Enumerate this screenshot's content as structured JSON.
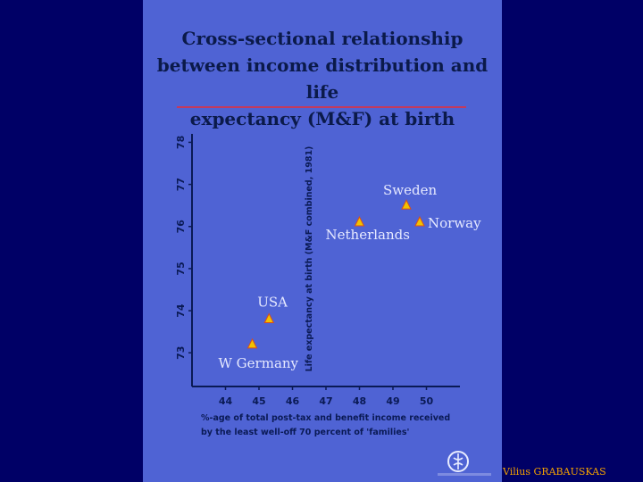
{
  "slide": {
    "title": "Cross-sectional relationship\nbetween income distribution and life\nexpectancy (M&F) at birth",
    "credit": "Vilius GRABAUSKAS",
    "logo_icon": "who-emblem-icon"
  },
  "colors": {
    "page_background": "#000066",
    "slide_background": "#4f63d4",
    "title_text": "#0b1a4a",
    "title_rule": "#c23a5e",
    "marker": "#f2c200",
    "credit_text": "#f2a000"
  },
  "chart_data": {
    "type": "scatter",
    "title": "Cross-sectional relationship between income distribution and life expectancy (M&F) at birth",
    "xlabel": "%-age of total post-tax and benefit income received by the least well-off 70 percent of 'families'",
    "ylabel": "Life expectancy at birth (M&F combined, 1981)",
    "xlim": [
      43,
      51
    ],
    "ylim": [
      72.2,
      78.2
    ],
    "x_ticks": [
      44,
      45,
      46,
      47,
      48,
      49,
      50
    ],
    "y_ticks": [
      73,
      74,
      75,
      76,
      77,
      78
    ],
    "grid": false,
    "points": [
      {
        "label": "W Germany",
        "x": 44.8,
        "y": 73.2
      },
      {
        "label": "USA",
        "x": 45.3,
        "y": 73.8
      },
      {
        "label": "Netherlands",
        "x": 48.0,
        "y": 76.1
      },
      {
        "label": "Sweden",
        "x": 49.4,
        "y": 76.5
      },
      {
        "label": "Norway",
        "x": 49.8,
        "y": 76.1
      }
    ]
  }
}
